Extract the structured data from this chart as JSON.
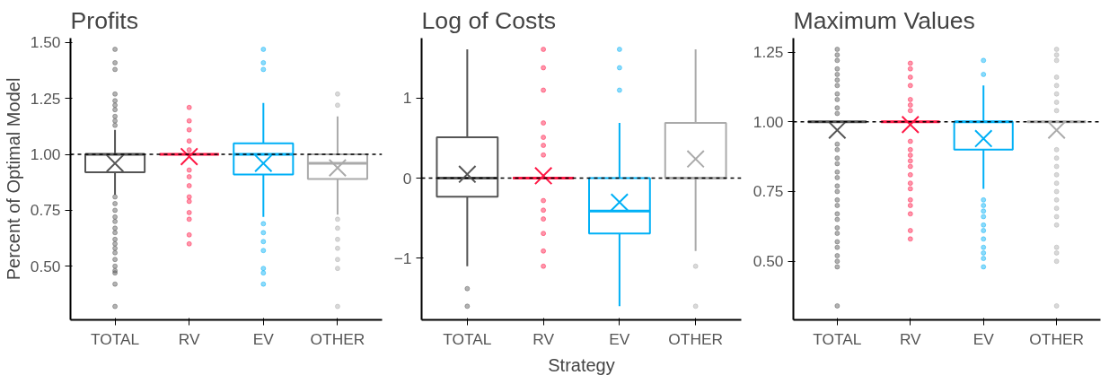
{
  "chart_data": [
    {
      "type": "box",
      "title": "Profits",
      "ylabel": "Percent of Optimal Model",
      "categories": [
        "TOTAL",
        "RV",
        "EV",
        "OTHER"
      ],
      "colors": [
        "#555555",
        "#ff1744",
        "#00b0f6",
        "#aaaaaa"
      ],
      "boxes": [
        {
          "low": 0.82,
          "q1": 0.92,
          "median": 1.0,
          "q3": 1.0,
          "high": 1.11,
          "mean": 0.96,
          "outliers": [
            1.47,
            1.41,
            1.38,
            1.27,
            1.24,
            1.22,
            1.2,
            1.17,
            1.15,
            1.13,
            0.81,
            0.78,
            0.75,
            0.72,
            0.7,
            0.67,
            0.65,
            0.62,
            0.6,
            0.58,
            0.56,
            0.53,
            0.5,
            0.48,
            0.47,
            0.42,
            0.32
          ]
        },
        {
          "low": 1.0,
          "q1": 1.0,
          "median": 1.0,
          "q3": 1.0,
          "high": 1.0,
          "mean": 0.99,
          "outliers": [
            1.21,
            1.15,
            1.11,
            1.06,
            1.02,
            0.93,
            0.9,
            0.86,
            0.81,
            0.79,
            0.74,
            0.71,
            0.64,
            0.6
          ]
        },
        {
          "low": 0.72,
          "q1": 0.91,
          "median": 1.0,
          "q3": 1.05,
          "high": 1.23,
          "mean": 0.96,
          "outliers": [
            1.47,
            1.41,
            1.38,
            0.69,
            0.65,
            0.61,
            0.57,
            0.49,
            0.47,
            0.42
          ]
        },
        {
          "low": 0.73,
          "q1": 0.89,
          "median": 0.96,
          "q3": 1.0,
          "high": 1.17,
          "mean": 0.94,
          "outliers": [
            1.27,
            1.22,
            0.71,
            0.67,
            0.62,
            0.58,
            0.53,
            0.49,
            0.32
          ]
        }
      ],
      "ylim": [
        0.26,
        1.52
      ],
      "yticks": [
        {
          "value": 0.5,
          "label": "0.50"
        },
        {
          "value": 0.75,
          "label": "0.75"
        },
        {
          "value": 1.0,
          "label": "1.00"
        },
        {
          "value": 1.25,
          "label": "1.25"
        },
        {
          "value": 1.5,
          "label": "1.50"
        }
      ],
      "ref_lines": [
        {
          "axis": "y",
          "value": 1.0,
          "label": null,
          "color": "#000000",
          "line_style": "dashed"
        }
      ],
      "grid": false
    },
    {
      "type": "box",
      "title": "Log of Costs",
      "xlabel": "Strategy",
      "categories": [
        "TOTAL",
        "RV",
        "EV",
        "OTHER"
      ],
      "colors": [
        "#555555",
        "#ff1744",
        "#00b0f6",
        "#aaaaaa"
      ],
      "boxes": [
        {
          "low": -1.1,
          "q1": -0.23,
          "median": 0.0,
          "q3": 0.51,
          "high": 1.61,
          "mean": 0.05,
          "outliers": [
            -1.38,
            -1.6
          ]
        },
        {
          "low": 0.0,
          "q1": 0.0,
          "median": 0.0,
          "q3": 0.0,
          "high": 0.0,
          "mean": 0.03,
          "outliers": [
            1.61,
            1.38,
            1.1,
            0.69,
            0.51,
            0.41,
            0.29,
            -0.28,
            -0.4,
            -0.51,
            -0.69,
            -0.91,
            -1.1
          ]
        },
        {
          "low": -1.6,
          "q1": -0.69,
          "median": -0.41,
          "q3": 0.0,
          "high": 0.69,
          "mean": -0.3,
          "outliers": [
            1.61,
            1.38,
            1.1
          ]
        },
        {
          "low": -0.91,
          "q1": 0.0,
          "median": 0.0,
          "q3": 0.69,
          "high": 1.61,
          "mean": 0.24,
          "outliers": [
            -1.1,
            -1.6
          ]
        }
      ],
      "ylim": [
        -1.77,
        1.75
      ],
      "yticks": [
        -1,
        0,
        1
      ],
      "ref_lines": [
        {
          "axis": "y",
          "value": 0,
          "label": null,
          "color": "#000000",
          "line_style": "dashed"
        }
      ],
      "grid": false
    },
    {
      "type": "box",
      "title": "Maximum Values",
      "categories": [
        "TOTAL",
        "RV",
        "EV",
        "OTHER"
      ],
      "colors": [
        "#555555",
        "#ff1744",
        "#00b0f6",
        "#aaaaaa"
      ],
      "boxes": [
        {
          "low": 1.0,
          "q1": 1.0,
          "median": 1.0,
          "q3": 1.0,
          "high": 1.0,
          "mean": 0.97,
          "outliers": [
            1.26,
            1.24,
            1.22,
            1.19,
            1.17,
            1.15,
            1.13,
            1.1,
            1.08,
            1.05,
            1.03,
            0.92,
            0.9,
            0.87,
            0.85,
            0.82,
            0.8,
            0.77,
            0.75,
            0.72,
            0.7,
            0.67,
            0.65,
            0.62,
            0.6,
            0.57,
            0.55,
            0.52,
            0.5,
            0.48,
            0.34
          ]
        },
        {
          "low": 1.0,
          "q1": 1.0,
          "median": 1.0,
          "q3": 1.0,
          "high": 1.0,
          "mean": 0.99,
          "outliers": [
            1.21,
            1.19,
            1.16,
            1.13,
            1.08,
            1.06,
            1.04,
            0.93,
            0.9,
            0.88,
            0.86,
            0.84,
            0.81,
            0.78,
            0.76,
            0.72,
            0.7,
            0.67,
            0.61,
            0.58
          ]
        },
        {
          "low": 0.76,
          "q1": 0.9,
          "median": 1.0,
          "q3": 1.0,
          "high": 1.13,
          "mean": 0.94,
          "outliers": [
            1.22,
            1.17,
            0.72,
            0.7,
            0.68,
            0.66,
            0.63,
            0.61,
            0.58,
            0.55,
            0.53,
            0.51,
            0.48
          ]
        },
        {
          "low": 1.0,
          "q1": 1.0,
          "median": 1.0,
          "q3": 1.0,
          "high": 1.0,
          "mean": 0.97,
          "outliers": [
            1.26,
            1.24,
            1.22,
            1.16,
            1.13,
            1.1,
            1.07,
            1.04,
            0.9,
            0.87,
            0.84,
            0.81,
            0.78,
            0.75,
            0.72,
            0.69,
            0.66,
            0.63,
            0.55,
            0.53,
            0.5,
            0.34
          ]
        }
      ],
      "ylim": [
        0.29,
        1.3
      ],
      "yticks": [
        {
          "value": 0.5,
          "label": "0.50"
        },
        {
          "value": 0.75,
          "label": "0.75"
        },
        {
          "value": 1.0,
          "label": "1.00"
        },
        {
          "value": 1.25,
          "label": "1.25"
        }
      ],
      "ref_lines": [
        {
          "axis": "y",
          "value": 1.0,
          "label": null,
          "color": "#000000",
          "line_style": "dashed"
        }
      ],
      "grid": false
    }
  ]
}
